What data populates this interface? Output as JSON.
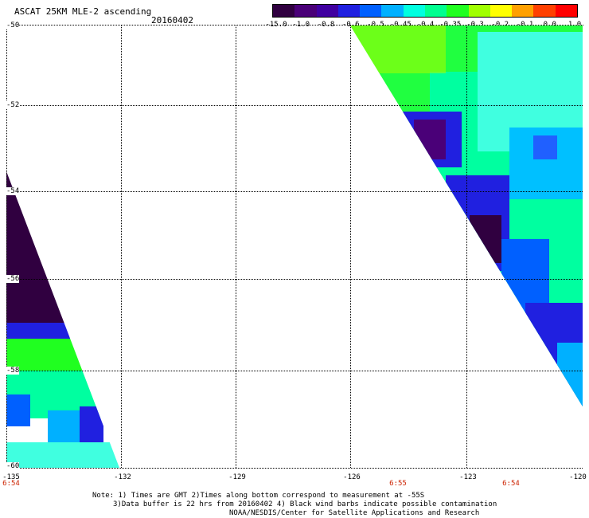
{
  "header": {
    "title": "ASCAT 25KM MLE-2 ascending",
    "date": "20160402"
  },
  "colorbar": {
    "labels": [
      "-15.0",
      "-1.0",
      "-0.8",
      "-0.6",
      "-0.5",
      "-0.45",
      "-0.4",
      "-0.35",
      "-0.3",
      "-0.2",
      "-0.1",
      "0.0",
      "1.0"
    ],
    "colors": [
      "#300040",
      "#4a0078",
      "#4000a0",
      "#2020e0",
      "#0060ff",
      "#00b0ff",
      "#00ffe0",
      "#00ff90",
      "#20ff20",
      "#a0ff00",
      "#ffff00",
      "#ffa000",
      "#ff4000",
      "#ff0000"
    ]
  },
  "axes": {
    "y_labels": [
      "-50",
      "-52",
      "-54",
      "-56",
      "-58",
      "-60"
    ],
    "x_labels": [
      "-135",
      "-132",
      "-129",
      "-126",
      "-123",
      "-120"
    ],
    "time_labels": [
      "6:54",
      "6:55",
      "6:54"
    ]
  },
  "notes": {
    "line1": "Note: 1) Times are GMT 2)Times along bottom correspond to measurement at -55S",
    "line2": "3)Data buffer is 22 hrs from 20160402 4) Black wind barbs indicate possible contamination",
    "line3": "NOAA/NESDIS/Center for Satellite Applications and Research"
  }
}
